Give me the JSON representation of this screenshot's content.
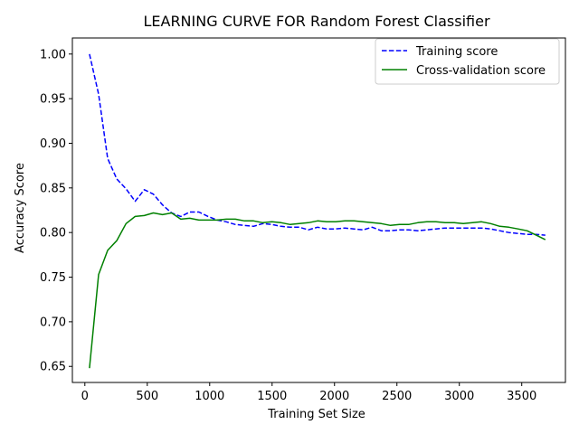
{
  "chart_data": {
    "type": "line",
    "title": "LEARNING CURVE FOR Random Forest Classifier",
    "xlabel": "Training Set Size",
    "ylabel": "Accuracy Score",
    "xlim": [
      -100,
      3850
    ],
    "ylim": [
      0.632,
      1.018
    ],
    "xticks": [
      0,
      500,
      1000,
      1500,
      2000,
      2500,
      3000,
      3500
    ],
    "yticks": [
      0.65,
      0.7,
      0.75,
      0.8,
      0.85,
      0.9,
      0.95,
      1.0
    ],
    "ytick_labels": [
      "0.65",
      "0.70",
      "0.75",
      "0.80",
      "0.85",
      "0.90",
      "0.95",
      "1.00"
    ],
    "legend_position": "top-right",
    "grid": false,
    "x": [
      37,
      110,
      183,
      256,
      330,
      403,
      476,
      549,
      622,
      695,
      768,
      841,
      914,
      987,
      1060,
      1133,
      1206,
      1279,
      1352,
      1426,
      1499,
      1572,
      1645,
      1718,
      1791,
      1864,
      1937,
      2010,
      2083,
      2156,
      2229,
      2302,
      2375,
      2448,
      2521,
      2594,
      2667,
      2740,
      2813,
      2886,
      2959,
      3032,
      3105,
      3178,
      3251,
      3324,
      3397,
      3470,
      3543,
      3616,
      3689
    ],
    "series": [
      {
        "name": "Training score",
        "color": "#0000ff",
        "style": "dashed",
        "values": [
          1.0,
          0.955,
          0.883,
          0.86,
          0.849,
          0.835,
          0.848,
          0.843,
          0.831,
          0.822,
          0.818,
          0.823,
          0.823,
          0.818,
          0.814,
          0.812,
          0.809,
          0.808,
          0.807,
          0.81,
          0.809,
          0.807,
          0.806,
          0.806,
          0.803,
          0.806,
          0.804,
          0.804,
          0.805,
          0.804,
          0.803,
          0.806,
          0.802,
          0.802,
          0.803,
          0.803,
          0.802,
          0.803,
          0.804,
          0.805,
          0.805,
          0.805,
          0.805,
          0.805,
          0.804,
          0.802,
          0.8,
          0.799,
          0.798,
          0.798,
          0.797
        ]
      },
      {
        "name": "Cross-validation score",
        "color": "#008000",
        "style": "solid",
        "values": [
          0.648,
          0.753,
          0.78,
          0.791,
          0.81,
          0.818,
          0.819,
          0.822,
          0.82,
          0.822,
          0.815,
          0.816,
          0.814,
          0.814,
          0.814,
          0.815,
          0.815,
          0.813,
          0.813,
          0.811,
          0.812,
          0.811,
          0.809,
          0.81,
          0.811,
          0.813,
          0.812,
          0.812,
          0.813,
          0.813,
          0.812,
          0.811,
          0.81,
          0.808,
          0.809,
          0.809,
          0.811,
          0.812,
          0.812,
          0.811,
          0.811,
          0.81,
          0.811,
          0.812,
          0.81,
          0.807,
          0.806,
          0.804,
          0.802,
          0.797,
          0.792
        ]
      }
    ]
  }
}
